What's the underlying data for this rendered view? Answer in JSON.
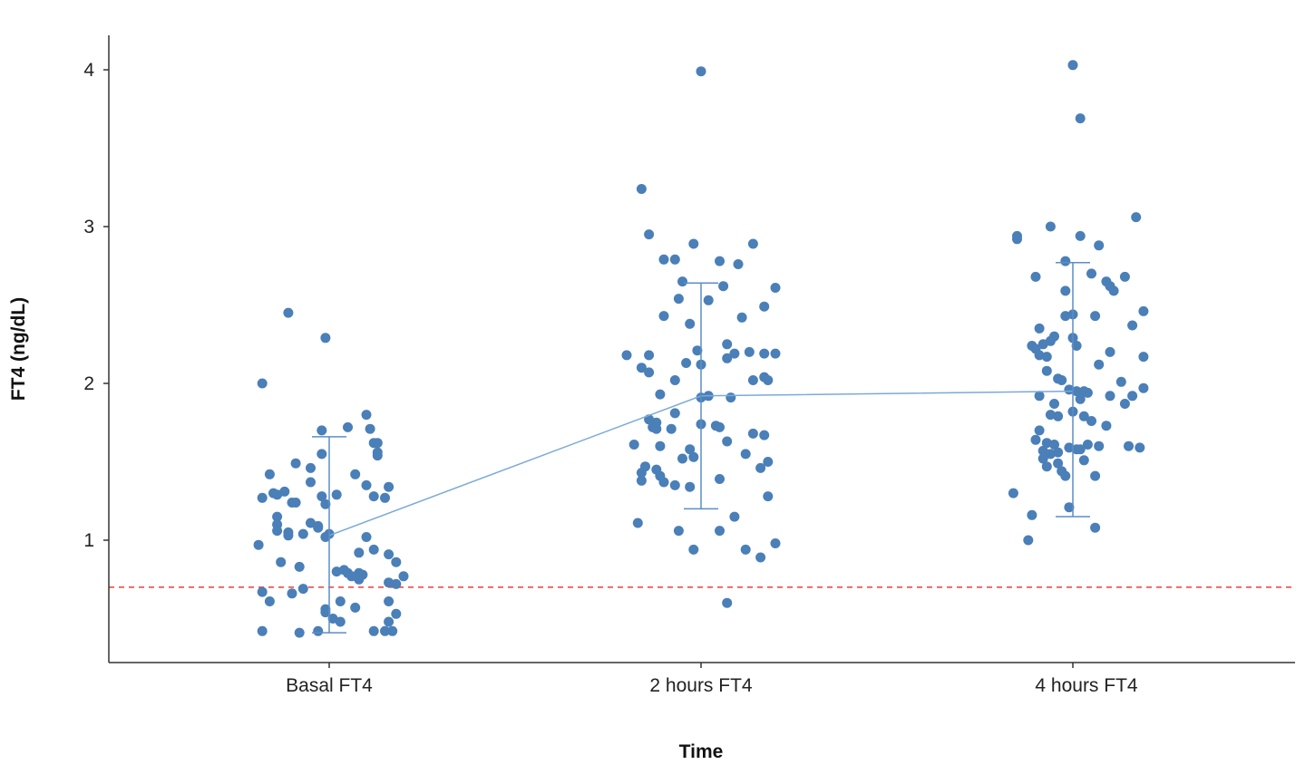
{
  "chart_data": {
    "type": "scatter",
    "title": "",
    "xlabel": "Time",
    "ylabel": "FT4 (ng/dL)",
    "categories": [
      "Basal FT4",
      "2 hours FT4",
      "4 hours FT4"
    ],
    "yticks": [
      "1",
      "2",
      "3",
      "4"
    ],
    "ylim": [
      0.22,
      4.22
    ],
    "grid": false,
    "reference_line": {
      "y": 0.7,
      "color": "#e8413c",
      "style": "dashed"
    },
    "mean_line": [
      1.03,
      1.92,
      1.95
    ],
    "error_bars": [
      {
        "low": 0.41,
        "high": 1.66
      },
      {
        "low": 1.2,
        "high": 2.64
      },
      {
        "low": 1.15,
        "high": 2.77
      }
    ],
    "colors": {
      "points": "#4a7fb8",
      "mean_line": "#7aaad8",
      "error_bar": "#5c8ec6",
      "axis": "#333333"
    },
    "series": [
      {
        "category": "Basal FT4",
        "points": [
          [
            -0.18,
            2.0
          ],
          [
            -0.11,
            2.45
          ],
          [
            -0.01,
            2.29
          ],
          [
            0.1,
            1.8
          ],
          [
            0.05,
            1.72
          ],
          [
            0.11,
            1.71
          ],
          [
            0.12,
            1.62
          ],
          [
            0.13,
            1.62
          ],
          [
            0.13,
            1.56
          ],
          [
            0.13,
            1.54
          ],
          [
            -0.02,
            1.7
          ],
          [
            -0.02,
            1.55
          ],
          [
            -0.09,
            1.49
          ],
          [
            -0.05,
            1.46
          ],
          [
            -0.16,
            1.42
          ],
          [
            0.07,
            1.42
          ],
          [
            -0.05,
            1.37
          ],
          [
            0.1,
            1.35
          ],
          [
            0.16,
            1.34
          ],
          [
            -0.12,
            1.31
          ],
          [
            -0.15,
            1.3
          ],
          [
            -0.14,
            1.29
          ],
          [
            0.02,
            1.29
          ],
          [
            0.12,
            1.28
          ],
          [
            -0.02,
            1.28
          ],
          [
            -0.18,
            1.27
          ],
          [
            0.15,
            1.27
          ],
          [
            -0.1,
            1.24
          ],
          [
            -0.09,
            1.24
          ],
          [
            -0.01,
            1.23
          ],
          [
            -0.14,
            1.15
          ],
          [
            -0.05,
            1.11
          ],
          [
            -0.14,
            1.1
          ],
          [
            -0.03,
            1.09
          ],
          [
            -0.03,
            1.08
          ],
          [
            -0.14,
            1.06
          ],
          [
            -0.11,
            1.05
          ],
          [
            -0.11,
            1.03
          ],
          [
            0.0,
            1.04
          ],
          [
            -0.07,
            1.04
          ],
          [
            -0.01,
            1.02
          ],
          [
            0.1,
            1.02
          ],
          [
            -0.19,
            0.97
          ],
          [
            0.12,
            0.94
          ],
          [
            0.08,
            0.92
          ],
          [
            0.16,
            0.91
          ],
          [
            0.18,
            0.86
          ],
          [
            -0.13,
            0.86
          ],
          [
            -0.08,
            0.83
          ],
          [
            0.04,
            0.81
          ],
          [
            0.02,
            0.8
          ],
          [
            0.05,
            0.79
          ],
          [
            0.08,
            0.79
          ],
          [
            0.09,
            0.78
          ],
          [
            0.06,
            0.77
          ],
          [
            0.2,
            0.77
          ],
          [
            0.08,
            0.75
          ],
          [
            0.16,
            0.73
          ],
          [
            0.18,
            0.72
          ],
          [
            -0.07,
            0.69
          ],
          [
            -0.18,
            0.67
          ],
          [
            -0.1,
            0.66
          ],
          [
            -0.16,
            0.61
          ],
          [
            0.03,
            0.61
          ],
          [
            0.16,
            0.61
          ],
          [
            0.07,
            0.57
          ],
          [
            -0.01,
            0.56
          ],
          [
            -0.01,
            0.54
          ],
          [
            0.18,
            0.53
          ],
          [
            0.01,
            0.5
          ],
          [
            0.03,
            0.48
          ],
          [
            0.16,
            0.48
          ],
          [
            -0.18,
            0.42
          ],
          [
            -0.08,
            0.41
          ],
          [
            -0.03,
            0.42
          ],
          [
            0.12,
            0.42
          ],
          [
            0.15,
            0.42
          ],
          [
            0.17,
            0.42
          ]
        ]
      },
      {
        "category": "2 hours FT4",
        "points": [
          [
            0.0,
            3.99
          ],
          [
            -0.16,
            3.24
          ],
          [
            -0.14,
            2.95
          ],
          [
            -0.1,
            2.79
          ],
          [
            -0.07,
            2.79
          ],
          [
            -0.02,
            2.89
          ],
          [
            0.05,
            2.78
          ],
          [
            0.14,
            2.89
          ],
          [
            0.1,
            2.76
          ],
          [
            -0.05,
            2.65
          ],
          [
            0.06,
            2.62
          ],
          [
            0.2,
            2.61
          ],
          [
            -0.06,
            2.54
          ],
          [
            0.02,
            2.53
          ],
          [
            0.17,
            2.49
          ],
          [
            -0.1,
            2.43
          ],
          [
            0.11,
            2.42
          ],
          [
            -0.03,
            2.38
          ],
          [
            0.07,
            2.25
          ],
          [
            -0.01,
            2.21
          ],
          [
            -0.2,
            2.18
          ],
          [
            -0.14,
            2.18
          ],
          [
            0.09,
            2.19
          ],
          [
            0.13,
            2.2
          ],
          [
            0.17,
            2.19
          ],
          [
            0.2,
            2.19
          ],
          [
            0.07,
            2.16
          ],
          [
            -0.04,
            2.13
          ],
          [
            0.0,
            2.12
          ],
          [
            -0.16,
            2.1
          ],
          [
            -0.14,
            2.07
          ],
          [
            0.17,
            2.04
          ],
          [
            0.18,
            2.02
          ],
          [
            -0.07,
            2.02
          ],
          [
            0.14,
            2.02
          ],
          [
            -0.11,
            1.93
          ],
          [
            0.02,
            1.92
          ],
          [
            0.0,
            1.91
          ],
          [
            0.08,
            1.91
          ],
          [
            -0.07,
            1.81
          ],
          [
            -0.14,
            1.77
          ],
          [
            -0.12,
            1.75
          ],
          [
            -0.13,
            1.72
          ],
          [
            -0.12,
            1.71
          ],
          [
            0.0,
            1.74
          ],
          [
            0.04,
            1.73
          ],
          [
            0.05,
            1.72
          ],
          [
            -0.08,
            1.71
          ],
          [
            0.14,
            1.68
          ],
          [
            0.17,
            1.67
          ],
          [
            -0.18,
            1.61
          ],
          [
            -0.11,
            1.6
          ],
          [
            0.07,
            1.63
          ],
          [
            -0.03,
            1.58
          ],
          [
            -0.05,
            1.52
          ],
          [
            -0.02,
            1.53
          ],
          [
            0.12,
            1.55
          ],
          [
            0.18,
            1.5
          ],
          [
            -0.15,
            1.47
          ],
          [
            -0.12,
            1.45
          ],
          [
            0.16,
            1.46
          ],
          [
            -0.16,
            1.43
          ],
          [
            -0.11,
            1.41
          ],
          [
            -0.16,
            1.38
          ],
          [
            0.05,
            1.39
          ],
          [
            -0.1,
            1.37
          ],
          [
            -0.07,
            1.35
          ],
          [
            -0.03,
            1.34
          ],
          [
            0.18,
            1.28
          ],
          [
            0.09,
            1.15
          ],
          [
            -0.17,
            1.11
          ],
          [
            -0.06,
            1.06
          ],
          [
            0.05,
            1.06
          ],
          [
            0.2,
            0.98
          ],
          [
            -0.02,
            0.94
          ],
          [
            0.12,
            0.94
          ],
          [
            0.16,
            0.89
          ],
          [
            0.07,
            0.6
          ]
        ]
      },
      {
        "category": "4 hours FT4",
        "points": [
          [
            0.0,
            4.03
          ],
          [
            0.02,
            3.69
          ],
          [
            0.17,
            3.06
          ],
          [
            -0.06,
            3.0
          ],
          [
            -0.15,
            2.94
          ],
          [
            -0.15,
            2.92
          ],
          [
            0.02,
            2.94
          ],
          [
            0.07,
            2.88
          ],
          [
            -0.1,
            2.68
          ],
          [
            -0.02,
            2.78
          ],
          [
            0.05,
            2.7
          ],
          [
            0.09,
            2.65
          ],
          [
            0.11,
            2.59
          ],
          [
            0.14,
            2.68
          ],
          [
            0.1,
            2.62
          ],
          [
            -0.02,
            2.59
          ],
          [
            0.19,
            2.46
          ],
          [
            0.0,
            2.44
          ],
          [
            -0.02,
            2.43
          ],
          [
            0.06,
            2.43
          ],
          [
            0.16,
            2.37
          ],
          [
            -0.09,
            2.35
          ],
          [
            -0.05,
            2.3
          ],
          [
            -0.06,
            2.27
          ],
          [
            -0.08,
            2.25
          ],
          [
            -0.11,
            2.24
          ],
          [
            -0.1,
            2.22
          ],
          [
            0.01,
            2.24
          ],
          [
            0.0,
            2.29
          ],
          [
            -0.09,
            2.18
          ],
          [
            -0.07,
            2.17
          ],
          [
            0.1,
            2.2
          ],
          [
            0.19,
            2.17
          ],
          [
            0.07,
            2.12
          ],
          [
            -0.07,
            2.08
          ],
          [
            -0.04,
            2.03
          ],
          [
            -0.03,
            2.02
          ],
          [
            0.13,
            2.01
          ],
          [
            0.19,
            1.97
          ],
          [
            -0.01,
            1.96
          ],
          [
            0.01,
            1.95
          ],
          [
            0.03,
            1.95
          ],
          [
            0.04,
            1.94
          ],
          [
            0.1,
            1.92
          ],
          [
            0.16,
            1.92
          ],
          [
            -0.09,
            1.92
          ],
          [
            -0.05,
            1.87
          ],
          [
            0.02,
            1.9
          ],
          [
            0.14,
            1.87
          ],
          [
            0.0,
            1.82
          ],
          [
            -0.04,
            1.79
          ],
          [
            -0.06,
            1.8
          ],
          [
            0.03,
            1.79
          ],
          [
            0.05,
            1.76
          ],
          [
            0.09,
            1.73
          ],
          [
            -0.09,
            1.7
          ],
          [
            -0.1,
            1.64
          ],
          [
            -0.07,
            1.62
          ],
          [
            -0.05,
            1.61
          ],
          [
            -0.01,
            1.59
          ],
          [
            0.01,
            1.58
          ],
          [
            0.02,
            1.58
          ],
          [
            0.04,
            1.61
          ],
          [
            0.07,
            1.6
          ],
          [
            0.15,
            1.6
          ],
          [
            0.18,
            1.59
          ],
          [
            -0.08,
            1.57
          ],
          [
            -0.06,
            1.55
          ],
          [
            -0.04,
            1.56
          ],
          [
            -0.08,
            1.52
          ],
          [
            -0.07,
            1.47
          ],
          [
            -0.04,
            1.49
          ],
          [
            -0.03,
            1.44
          ],
          [
            -0.02,
            1.41
          ],
          [
            0.03,
            1.51
          ],
          [
            0.06,
            1.41
          ],
          [
            -0.16,
            1.3
          ],
          [
            -0.01,
            1.21
          ],
          [
            -0.11,
            1.16
          ],
          [
            0.06,
            1.08
          ],
          [
            -0.12,
            1.0
          ]
        ]
      }
    ]
  }
}
